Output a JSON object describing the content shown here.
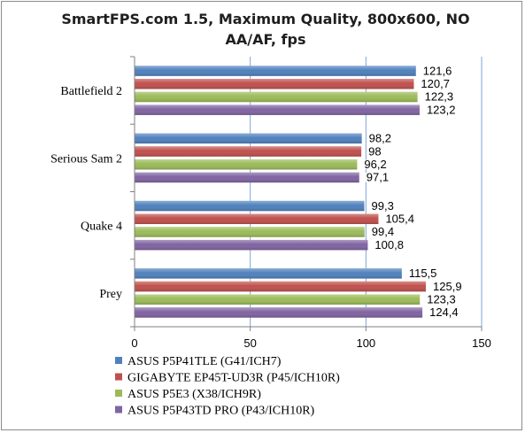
{
  "chart_data": {
    "type": "bar",
    "orientation": "horizontal",
    "title": "SmartFPS.com 1.5, Maximum Quality, 800x600, NO AA/AF, fps",
    "title_lines": [
      "SmartFPS.com 1.5, Maximum Quality, 800x600, NO",
      "AA/AF, fps"
    ],
    "categories": [
      "Battlefield 2",
      "Serious Sam 2",
      "Quake 4",
      "Prey"
    ],
    "series": [
      {
        "name": "ASUS P5P41TLE (G41/ICH7)",
        "color": "#4f81bd",
        "values": [
          121.6,
          98.2,
          99.3,
          115.5
        ],
        "labels": [
          "121,6",
          "98,2",
          "99,3",
          "115,5"
        ]
      },
      {
        "name": "GIGABYTE EP45T-UD3R (P45/ICH10R)",
        "color": "#c0504d",
        "values": [
          120.7,
          98,
          105.4,
          125.9
        ],
        "labels": [
          "120,7",
          "98",
          "105,4",
          "125,9"
        ]
      },
      {
        "name": "ASUS P5E3 (X38/ICH9R)",
        "color": "#9bbb59",
        "values": [
          122.3,
          96.2,
          99.4,
          123.3
        ],
        "labels": [
          "122,3",
          "96,2",
          "99,4",
          "123,3"
        ]
      },
      {
        "name": "ASUS P5P43TD PRO (P43/ICH10R)",
        "color": "#8064a2",
        "values": [
          123.2,
          97.1,
          100.8,
          124.4
        ],
        "labels": [
          "123,2",
          "97,1",
          "100,8",
          "124,4"
        ]
      }
    ],
    "xlim": [
      0,
      150
    ],
    "xticks": [
      0,
      50,
      100,
      150
    ],
    "xtick_labels": [
      "0",
      "50",
      "100",
      "150"
    ],
    "grid": true,
    "legend_position": "bottom"
  }
}
